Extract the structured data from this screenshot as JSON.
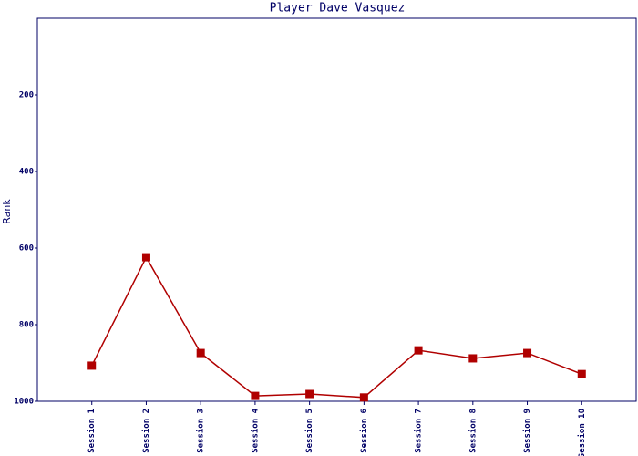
{
  "chart_data": {
    "type": "line",
    "title": "Player Dave Vasquez",
    "y_label": "Rank",
    "categories": [
      "Session 1",
      "Session 2",
      "Session 3",
      "Session 4",
      "Session 5",
      "Session 6",
      "Session 7",
      "Session 8",
      "Session 9",
      "Session 10"
    ],
    "series": [
      {
        "name": "Rank",
        "color": "#b00000",
        "values": [
          907,
          624,
          874,
          986,
          981,
          990,
          867,
          888,
          874,
          929
        ]
      }
    ],
    "ylim": [
      1000,
      0
    ],
    "yticks": [
      200,
      400,
      600,
      800,
      1000
    ]
  }
}
